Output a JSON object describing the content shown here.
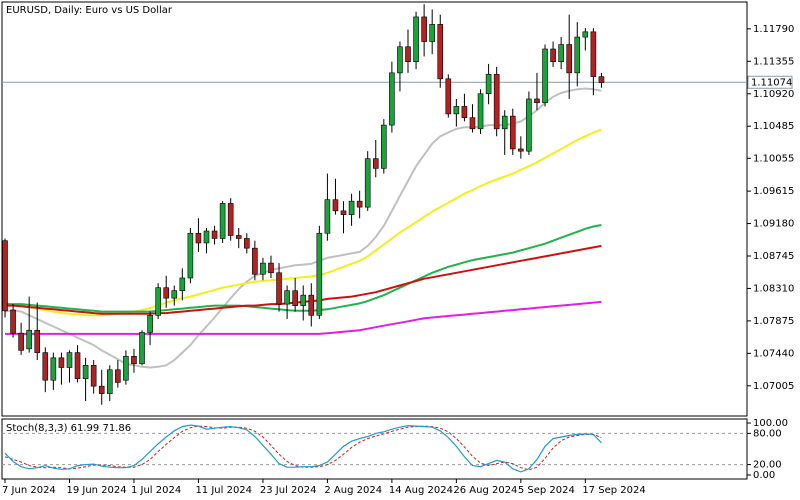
{
  "chart_data": {
    "type": "candlestick",
    "title": "EURUSD, Daily:  Euro vs US Dollar",
    "colors": {
      "bull": "#1aa33a",
      "bear": "#b22222",
      "wick": "#000000",
      "price_line": "#8c9aa5",
      "price_label_bg": "#ffffff",
      "background": "#ffffff",
      "grid_axis": "#000000"
    },
    "ylim": [
      1.066,
      1.1215
    ],
    "y_ticks": [
      "1.11790",
      "1.11355",
      "1.10920",
      "1.10485",
      "1.10055",
      "1.09615",
      "1.09180",
      "1.08745",
      "1.08310",
      "1.07875",
      "1.07440",
      "1.07005"
    ],
    "y_tick_values": [
      1.1179,
      1.11355,
      1.1092,
      1.10485,
      1.10055,
      1.09615,
      1.0918,
      1.08745,
      1.0831,
      1.07875,
      1.0744,
      1.07005
    ],
    "current_price": "1.11074",
    "current_price_value": 1.11074,
    "x_ticks": [
      {
        "label": "7 Jun 2024",
        "index": 0
      },
      {
        "label": "19 Jun 2024",
        "index": 8
      },
      {
        "label": "1 Jul 2024",
        "index": 16
      },
      {
        "label": "11 Jul 2024",
        "index": 24
      },
      {
        "label": "23 Jul 2024",
        "index": 32
      },
      {
        "label": "2 Aug 2024",
        "index": 40
      },
      {
        "label": "14 Aug 2024",
        "index": 48
      },
      {
        "label": "26 Aug 2024",
        "index": 56
      },
      {
        "label": "5 Sep 2024",
        "index": 64
      },
      {
        "label": "17 Sep 2024",
        "index": 72
      }
    ],
    "candles": [
      [
        1.0895,
        1.0898,
        1.0792,
        1.0801
      ],
      [
        1.0802,
        1.081,
        1.0765,
        1.0771
      ],
      [
        1.0771,
        1.0785,
        1.0742,
        1.0748
      ],
      [
        1.075,
        1.082,
        1.0745,
        1.0775
      ],
      [
        1.0775,
        1.0812,
        1.0735,
        1.0745
      ],
      [
        1.0745,
        1.0752,
        1.0692,
        1.0708
      ],
      [
        1.0708,
        1.0745,
        1.0695,
        1.0738
      ],
      [
        1.0738,
        1.0745,
        1.0702,
        1.0725
      ],
      [
        1.0725,
        1.0748,
        1.0705,
        1.0745
      ],
      [
        1.0745,
        1.0755,
        1.0705,
        1.071
      ],
      [
        1.071,
        1.0738,
        1.068,
        1.0728
      ],
      [
        1.0728,
        1.0735,
        1.069,
        1.07
      ],
      [
        1.07,
        1.0722,
        1.0675,
        1.069
      ],
      [
        1.069,
        1.0728,
        1.068,
        1.0722
      ],
      [
        1.0722,
        1.0735,
        1.0698,
        1.0705
      ],
      [
        1.0708,
        1.0748,
        1.0702,
        1.074
      ],
      [
        1.074,
        1.075,
        1.0718,
        1.073
      ],
      [
        1.073,
        1.0775,
        1.0728,
        1.0772
      ],
      [
        1.0772,
        1.08,
        1.0755,
        1.0795
      ],
      [
        1.0795,
        1.0838,
        1.079,
        1.0832
      ],
      [
        1.0832,
        1.0848,
        1.0805,
        1.0818
      ],
      [
        1.0818,
        1.0835,
        1.0808,
        1.0828
      ],
      [
        1.0828,
        1.0858,
        1.0815,
        1.0845
      ],
      [
        1.0845,
        1.0912,
        1.0838,
        1.0905
      ],
      [
        1.0905,
        1.0925,
        1.088,
        1.0892
      ],
      [
        1.0892,
        1.0912,
        1.0878,
        1.0908
      ],
      [
        1.0908,
        1.0915,
        1.089,
        1.0898
      ],
      [
        1.0898,
        1.0948,
        1.0892,
        1.0945
      ],
      [
        1.0945,
        1.0952,
        1.0895,
        1.0902
      ],
      [
        1.0902,
        1.0912,
        1.0885,
        1.0898
      ],
      [
        1.0898,
        1.0905,
        1.0878,
        1.0885
      ],
      [
        1.0885,
        1.0895,
        1.0842,
        1.085
      ],
      [
        1.085,
        1.0872,
        1.0842,
        1.0865
      ],
      [
        1.0865,
        1.0875,
        1.0845,
        1.0852
      ],
      [
        1.0852,
        1.0865,
        1.08,
        1.081
      ],
      [
        1.081,
        1.0835,
        1.079,
        1.0828
      ],
      [
        1.0828,
        1.0845,
        1.08,
        1.0808
      ],
      [
        1.0808,
        1.0835,
        1.0788,
        1.0822
      ],
      [
        1.0822,
        1.0838,
        1.078,
        1.0795
      ],
      [
        1.0795,
        1.0915,
        1.079,
        1.0905
      ],
      [
        1.0905,
        1.0985,
        1.0895,
        1.095
      ],
      [
        1.095,
        1.0978,
        1.093,
        1.0935
      ],
      [
        1.0935,
        1.0948,
        1.0905,
        1.093
      ],
      [
        1.093,
        1.0958,
        1.0915,
        1.0948
      ],
      [
        1.0948,
        1.0962,
        1.0925,
        1.094
      ],
      [
        1.094,
        1.1015,
        1.0935,
        1.1005
      ],
      [
        1.1005,
        1.103,
        1.098,
        1.0992
      ],
      [
        1.0992,
        1.1058,
        1.0985,
        1.105
      ],
      [
        1.105,
        1.1135,
        1.104,
        1.112
      ],
      [
        1.112,
        1.1162,
        1.1095,
        1.1155
      ],
      [
        1.1155,
        1.1178,
        1.112,
        1.1135
      ],
      [
        1.1135,
        1.1202,
        1.1125,
        1.1195
      ],
      [
        1.1195,
        1.1212,
        1.1142,
        1.1162
      ],
      [
        1.1162,
        1.1205,
        1.1145,
        1.1185
      ],
      [
        1.1185,
        1.1198,
        1.11,
        1.1112
      ],
      [
        1.1112,
        1.1118,
        1.106,
        1.1065
      ],
      [
        1.1065,
        1.1085,
        1.1048,
        1.1075
      ],
      [
        1.1075,
        1.1092,
        1.1055,
        1.106
      ],
      [
        1.106,
        1.1078,
        1.104,
        1.1045
      ],
      [
        1.1045,
        1.1098,
        1.1038,
        1.1092
      ],
      [
        1.1092,
        1.1132,
        1.1078,
        1.1118
      ],
      [
        1.1118,
        1.1128,
        1.1035,
        1.1045
      ],
      [
        1.1045,
        1.107,
        1.101,
        1.1062
      ],
      [
        1.1062,
        1.1072,
        1.101,
        1.1018
      ],
      [
        1.1018,
        1.1035,
        1.1005,
        1.1015
      ],
      [
        1.1015,
        1.1095,
        1.101,
        1.1085
      ],
      [
        1.1085,
        1.112,
        1.107,
        1.108
      ],
      [
        1.108,
        1.1158,
        1.1075,
        1.1152
      ],
      [
        1.1152,
        1.1162,
        1.1128,
        1.1135
      ],
      [
        1.1135,
        1.1168,
        1.1125,
        1.1158
      ],
      [
        1.1158,
        1.1198,
        1.1085,
        1.112
      ],
      [
        1.112,
        1.1188,
        1.1102,
        1.1168
      ],
      [
        1.1168,
        1.118,
        1.115,
        1.1175
      ],
      [
        1.1175,
        1.118,
        1.109,
        1.1115
      ],
      [
        1.1115,
        1.112,
        1.11,
        1.1107
      ]
    ],
    "moving_averages": [
      {
        "color": "#c0c0c0",
        "values": [
          1.08,
          1.0802,
          1.08,
          1.0795,
          1.079,
          1.0785,
          1.078,
          1.0775,
          1.077,
          1.0765,
          1.076,
          1.0755,
          1.0748,
          1.0742,
          1.0736,
          1.073,
          1.0728,
          1.0726,
          1.0725,
          1.0726,
          1.0728,
          1.0735,
          1.0745,
          1.0755,
          1.0768,
          1.078,
          1.0792,
          1.0805,
          1.0818,
          1.083,
          1.084,
          1.0848,
          1.0852,
          1.0856,
          1.0858,
          1.086,
          1.0862,
          1.0863,
          1.0864,
          1.0868,
          1.0872,
          1.0874,
          1.0876,
          1.0878,
          1.088,
          1.0888,
          1.09,
          1.0915,
          1.0935,
          1.0955,
          1.0975,
          1.0995,
          1.101,
          1.1025,
          1.1035,
          1.104,
          1.1045,
          1.1047,
          1.1047,
          1.1048,
          1.105,
          1.105,
          1.105,
          1.1052,
          1.1055,
          1.1062,
          1.107,
          1.108,
          1.1088,
          1.1093,
          1.1096,
          1.1098,
          1.1099,
          1.1098,
          1.1096
        ]
      },
      {
        "color": "#f2ef1c",
        "values": [
          1.081,
          1.081,
          1.0808,
          1.0806,
          1.0804,
          1.0802,
          1.08,
          1.0798,
          1.0797,
          1.0796,
          1.0795,
          1.0795,
          1.0795,
          1.0796,
          1.0797,
          1.0798,
          1.08,
          1.0802,
          1.0805,
          1.0808,
          1.0812,
          1.0815,
          1.0818,
          1.082,
          1.0823,
          1.0826,
          1.0829,
          1.0832,
          1.0834,
          1.0836,
          1.0838,
          1.084,
          1.0841,
          1.0842,
          1.0843,
          1.0844,
          1.0845,
          1.0846,
          1.0847,
          1.0849,
          1.0852,
          1.0856,
          1.086,
          1.0864,
          1.0868,
          1.0874,
          1.0882,
          1.089,
          1.0898,
          1.0906,
          1.0913,
          1.092,
          1.0927,
          1.0934,
          1.094,
          1.0946,
          1.0952,
          1.0958,
          1.0963,
          1.0968,
          1.0973,
          1.0977,
          1.0981,
          1.0985,
          1.099,
          1.0995,
          1.1,
          1.1006,
          1.1012,
          1.1018,
          1.1024,
          1.103,
          1.1035,
          1.104,
          1.1044
        ]
      },
      {
        "color": "#22b24c",
        "values": [
          1.081,
          1.081,
          1.081,
          1.0809,
          1.0808,
          1.0807,
          1.0806,
          1.0805,
          1.0804,
          1.0803,
          1.0802,
          1.0801,
          1.08,
          1.08,
          1.08,
          1.08,
          1.08,
          1.08,
          1.08,
          1.0801,
          1.0802,
          1.0803,
          1.0804,
          1.0805,
          1.0806,
          1.0807,
          1.0808,
          1.0808,
          1.0808,
          1.0808,
          1.0807,
          1.0806,
          1.0805,
          1.0804,
          1.0803,
          1.0802,
          1.0801,
          1.0801,
          1.0801,
          1.0802,
          1.0803,
          1.0805,
          1.0807,
          1.0809,
          1.0811,
          1.0814,
          1.0818,
          1.0822,
          1.0827,
          1.0832,
          1.0837,
          1.0842,
          1.0847,
          1.0852,
          1.0856,
          1.086,
          1.0863,
          1.0866,
          1.0869,
          1.0871,
          1.0873,
          1.0875,
          1.0877,
          1.0879,
          1.0882,
          1.0885,
          1.0888,
          1.0891,
          1.0895,
          1.0899,
          1.0903,
          1.0907,
          1.0911,
          1.0914,
          1.0916
        ]
      },
      {
        "color": "#cc1111",
        "values": [
          1.0808,
          1.0808,
          1.0807,
          1.0806,
          1.0805,
          1.0804,
          1.0803,
          1.0802,
          1.0801,
          1.08,
          1.0799,
          1.0798,
          1.0797,
          1.0797,
          1.0797,
          1.0797,
          1.0797,
          1.0797,
          1.0797,
          1.0798,
          1.0798,
          1.0799,
          1.08,
          1.0801,
          1.0802,
          1.0803,
          1.0804,
          1.0805,
          1.0806,
          1.0807,
          1.0808,
          1.0808,
          1.0809,
          1.081,
          1.081,
          1.0811,
          1.0812,
          1.0813,
          1.0814,
          1.0815,
          1.0817,
          1.0818,
          1.0819,
          1.082,
          1.0822,
          1.0824,
          1.0826,
          1.0829,
          1.0832,
          1.0835,
          1.0838,
          1.0841,
          1.0844,
          1.0846,
          1.0848,
          1.085,
          1.0852,
          1.0854,
          1.0856,
          1.0858,
          1.086,
          1.0862,
          1.0864,
          1.0866,
          1.0868,
          1.087,
          1.0872,
          1.0874,
          1.0876,
          1.0878,
          1.088,
          1.0882,
          1.0884,
          1.0886,
          1.0888
        ]
      },
      {
        "color": "#e020e0",
        "values": [
          1.077,
          1.077,
          1.077,
          1.077,
          1.077,
          1.077,
          1.077,
          1.077,
          1.077,
          1.077,
          1.077,
          1.077,
          1.077,
          1.077,
          1.077,
          1.077,
          1.077,
          1.077,
          1.077,
          1.077,
          1.077,
          1.077,
          1.077,
          1.077,
          1.077,
          1.077,
          1.077,
          1.077,
          1.077,
          1.077,
          1.077,
          1.077,
          1.077,
          1.077,
          1.077,
          1.077,
          1.077,
          1.077,
          1.077,
          1.077,
          1.0771,
          1.0772,
          1.0773,
          1.0774,
          1.0775,
          1.0777,
          1.0779,
          1.0781,
          1.0783,
          1.0785,
          1.0787,
          1.0789,
          1.0791,
          1.0792,
          1.0793,
          1.0794,
          1.0795,
          1.0796,
          1.0797,
          1.0798,
          1.0799,
          1.08,
          1.0801,
          1.0802,
          1.0803,
          1.0804,
          1.0805,
          1.0806,
          1.0807,
          1.0808,
          1.0809,
          1.081,
          1.0811,
          1.0812,
          1.0813
        ]
      }
    ],
    "stochastic": {
      "label": "Stoch(8,3,3) 61.99 71.86",
      "ylim": [
        0,
        100
      ],
      "levels": [
        80,
        20
      ],
      "y_ticks": [
        "100.00",
        "80.00",
        "20.00",
        "0.00"
      ],
      "y_tick_values": [
        100,
        80,
        20,
        0
      ],
      "main_color": "#1f9bd1",
      "signal_color": "#d01c1c",
      "main": [
        42,
        26,
        16,
        12,
        14,
        18,
        13,
        11,
        12,
        18,
        20,
        21,
        17,
        15,
        14,
        14,
        18,
        30,
        45,
        60,
        73,
        85,
        93,
        96,
        94,
        88,
        90,
        92,
        93,
        91,
        87,
        74,
        57,
        40,
        22,
        15,
        15,
        16,
        16,
        18,
        25,
        40,
        55,
        65,
        70,
        74,
        80,
        83,
        88,
        92,
        95,
        94,
        93,
        92,
        85,
        72,
        55,
        35,
        18,
        16,
        22,
        28,
        25,
        12,
        6,
        12,
        30,
        55,
        70,
        73,
        76,
        78,
        79,
        78,
        62
      ],
      "signal": [
        35,
        30,
        25,
        18,
        15,
        14,
        15,
        14,
        12,
        13,
        16,
        19,
        19,
        18,
        16,
        15,
        15,
        20,
        30,
        45,
        59,
        72,
        84,
        91,
        94,
        93,
        91,
        90,
        92,
        92,
        90,
        84,
        73,
        57,
        40,
        26,
        18,
        15,
        15,
        16,
        20,
        28,
        40,
        53,
        63,
        70,
        75,
        79,
        84,
        88,
        92,
        93,
        94,
        93,
        90,
        83,
        70,
        54,
        36,
        23,
        18,
        22,
        25,
        22,
        14,
        10,
        15,
        32,
        52,
        66,
        73,
        76,
        78,
        78,
        72
      ]
    }
  }
}
